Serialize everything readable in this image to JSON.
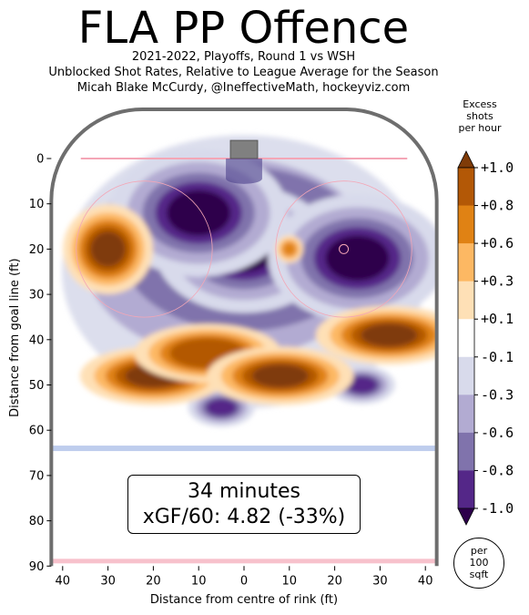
{
  "header": {
    "title": "FLA PP Offence",
    "subtitle_lines": [
      "2021-2022, Playoffs, Round 1 vs WSH",
      "Unblocked Shot Rates, Relative to League Average for the Season",
      "Micah Blake McCurdy, @IneffectiveMath, hockeyviz.com"
    ]
  },
  "summary": {
    "minutes_text": "34 minutes",
    "xg_text": "xGF/60: 4.82 (-33%)"
  },
  "colorbar": {
    "title_lines": [
      "Excess",
      "shots",
      "per hour"
    ],
    "unit_lines": [
      "per",
      "100",
      "sqft"
    ],
    "ticks": [
      "+1.0",
      "+0.8",
      "+0.6",
      "+0.3",
      "+0.1",
      "-0.1",
      "-0.3",
      "-0.6",
      "-0.8",
      "-1.0"
    ],
    "colors": [
      "#7f3b08",
      "#b35806",
      "#e08214",
      "#fdb863",
      "#fee0b6",
      "#ffffff",
      "#d8daeb",
      "#b2abd2",
      "#8073ac",
      "#542788",
      "#2d004b"
    ]
  },
  "chart_data": {
    "type": "heatmap",
    "title": "FLA PP Offence",
    "xlabel": "Distance from centre of rink (ft)",
    "ylabel": "Distance from goal line (ft)",
    "xlim": [
      -42.5,
      42.5
    ],
    "ylim": [
      90,
      -11
    ],
    "x_ticks": [
      40,
      30,
      20,
      10,
      0,
      10,
      20,
      30,
      40
    ],
    "x_tick_values": [
      -40,
      -30,
      -20,
      -10,
      0,
      10,
      20,
      30,
      40
    ],
    "y_ticks": [
      0,
      10,
      20,
      30,
      40,
      50,
      60,
      70,
      80,
      90
    ],
    "hotspots": [
      {
        "x": -30,
        "y": 20,
        "value": 1.0
      },
      {
        "x": -20,
        "y": 48,
        "value": 1.0
      },
      {
        "x": -8,
        "y": 43,
        "value": 0.8
      },
      {
        "x": 8,
        "y": 48,
        "value": 1.0
      },
      {
        "x": 32,
        "y": 39,
        "value": 1.0
      },
      {
        "x": 10,
        "y": 20,
        "value": 0.6
      },
      {
        "x": 0,
        "y": 20,
        "value": -1.0
      },
      {
        "x": -10,
        "y": 12,
        "value": -1.0
      },
      {
        "x": 25,
        "y": 22,
        "value": -1.0
      },
      {
        "x": -5,
        "y": 55,
        "value": -0.8
      },
      {
        "x": 26,
        "y": 50,
        "value": -0.8
      }
    ]
  }
}
